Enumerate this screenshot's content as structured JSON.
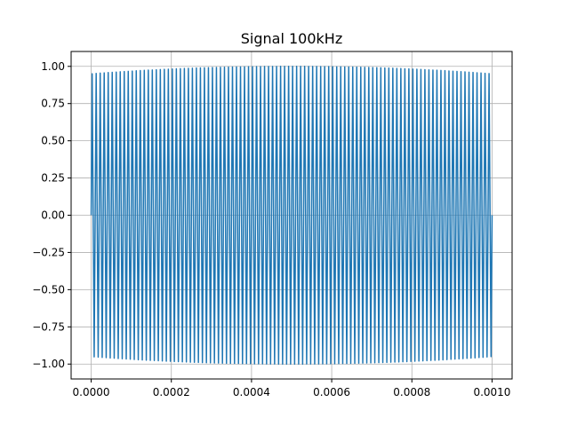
{
  "chart_data": {
    "type": "line",
    "title": "Signal 100kHz",
    "xlabel": "",
    "ylabel": "",
    "xlim": [
      -5e-05,
      0.00105
    ],
    "ylim": [
      -1.1,
      1.1
    ],
    "grid": true,
    "x_ticks": [
      0.0,
      0.0002,
      0.0004,
      0.0006,
      0.0008,
      0.001
    ],
    "x_tick_labels": [
      "0.0000",
      "0.0002",
      "0.0004",
      "0.0006",
      "0.0008",
      "0.0010"
    ],
    "y_ticks": [
      -1.0,
      -0.75,
      -0.5,
      -0.25,
      0.0,
      0.25,
      0.5,
      0.75,
      1.0
    ],
    "y_tick_labels": [
      "−1.00",
      "−0.75",
      "−0.50",
      "−0.25",
      "0.00",
      "0.25",
      "0.50",
      "0.75",
      "1.00"
    ],
    "series": [
      {
        "color": "#1f77b4",
        "function": "sine",
        "frequency_hz": 100000,
        "x_start": 0.0,
        "x_end": 0.001,
        "amplitude": 1.0
      }
    ]
  }
}
